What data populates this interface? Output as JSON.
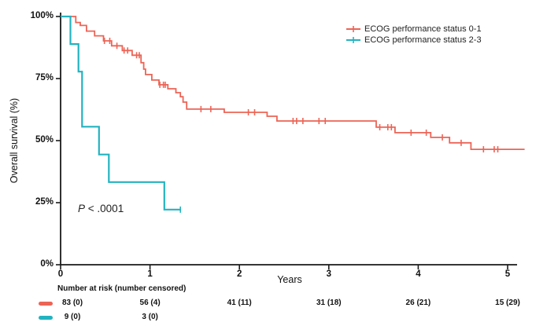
{
  "chart_data": {
    "type": "line",
    "subtype": "kaplan-meier-step",
    "title": "",
    "x_axis": {
      "label": "Years",
      "range": [
        0,
        5.2
      ],
      "ticks": [
        {
          "label": "0",
          "value": 0
        },
        {
          "label": "1",
          "value": 1
        },
        {
          "label": "2",
          "value": 2
        },
        {
          "label": "3",
          "value": 3
        },
        {
          "label": "4",
          "value": 4
        },
        {
          "label": "5",
          "value": 5
        }
      ]
    },
    "y_axis": {
      "label": "Overall survival (%)",
      "range": [
        0,
        100
      ],
      "ticks": [
        {
          "label": "100%",
          "value": 100
        },
        {
          "label": "75%",
          "value": 75
        },
        {
          "label": "50%",
          "value": 50
        },
        {
          "label": "25%",
          "value": 25
        },
        {
          "label": "0%",
          "value": 0
        }
      ]
    },
    "grid": "off",
    "legend_position": "top-right",
    "p_value": {
      "symbol": "P",
      "text": "< .0001"
    },
    "series": [
      {
        "name": "ECOG performance status 0-1",
        "color": "#ec6456",
        "line_width": 1.8,
        "steps": [
          [
            0,
            100
          ],
          [
            0.17,
            97.6
          ],
          [
            0.22,
            96.4
          ],
          [
            0.29,
            94.1
          ],
          [
            0.38,
            92.2
          ],
          [
            0.48,
            90.2
          ],
          [
            0.57,
            88.2
          ],
          [
            0.69,
            86.3
          ],
          [
            0.8,
            84.4
          ],
          [
            0.9,
            81.4
          ],
          [
            0.93,
            78.8
          ],
          [
            0.95,
            76.6
          ],
          [
            1.02,
            74.4
          ],
          [
            1.1,
            72.5
          ],
          [
            1.2,
            70.9
          ],
          [
            1.29,
            69.3
          ],
          [
            1.34,
            67.7
          ],
          [
            1.37,
            65.5
          ],
          [
            1.41,
            62.7
          ],
          [
            1.83,
            61.4
          ],
          [
            2.31,
            59.8
          ],
          [
            2.42,
            57.9
          ],
          [
            3.53,
            55.4
          ],
          [
            3.74,
            53.2
          ],
          [
            4.14,
            51.3
          ],
          [
            4.35,
            49.1
          ],
          [
            4.59,
            46.5
          ]
        ],
        "end_time": 5.19,
        "censor_times": [
          0.49,
          0.55,
          0.63,
          0.71,
          0.75,
          0.85,
          0.88,
          1.11,
          1.15,
          1.17,
          1.57,
          1.68,
          2.1,
          2.17,
          2.6,
          2.64,
          2.71,
          2.89,
          2.96,
          3.57,
          3.66,
          3.7,
          3.92,
          4.09,
          4.27,
          4.48,
          4.73,
          4.85,
          4.89
        ]
      },
      {
        "name": "ECOG performance status 2-3",
        "color": "#23b3c0",
        "line_width": 2.2,
        "steps": [
          [
            0,
            100
          ],
          [
            0.11,
            88.9
          ],
          [
            0.2,
            77.8
          ],
          [
            0.24,
            55.6
          ],
          [
            0.43,
            44.4
          ],
          [
            0.54,
            33.3
          ],
          [
            1.16,
            22.2
          ]
        ],
        "end_time": 1.34,
        "censor_times": [
          1.34
        ]
      }
    ],
    "risk_table": {
      "title": "Number at risk (number censored)",
      "rows": [
        {
          "color": "#ec6456",
          "counts": [
            "83 (0)",
            "56 (4)",
            "41 (11)",
            "31 (18)",
            "26 (21)",
            "15 (29)"
          ]
        },
        {
          "color": "#23b3c0",
          "counts": [
            "9 (0)",
            "3 (0)"
          ]
        }
      ]
    }
  }
}
